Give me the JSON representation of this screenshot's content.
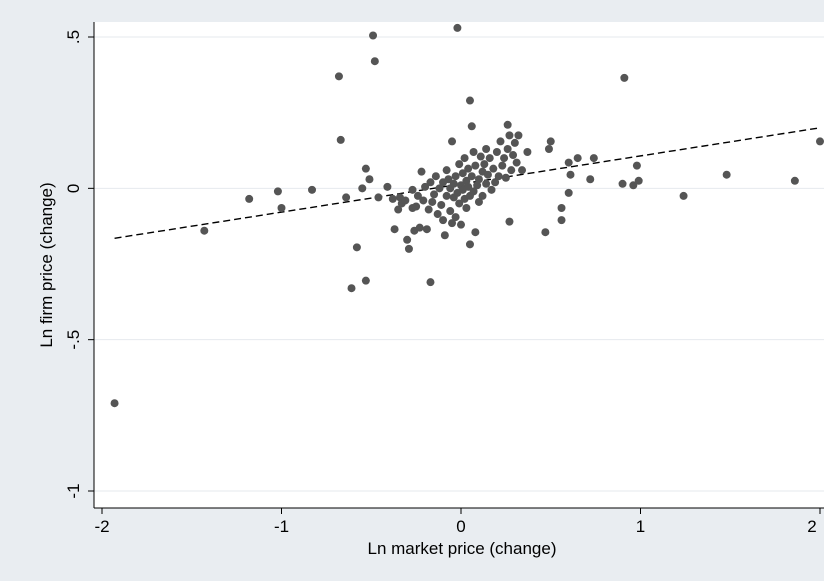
{
  "chart_data": {
    "type": "scatter",
    "title": "",
    "xlabel": "Ln market price (change)",
    "ylabel": "Ln firm price (change)",
    "xlim": [
      -2,
      2
    ],
    "ylim": [
      -1,
      0.5
    ],
    "x_ticks": [
      {
        "value": -2,
        "label": "-2"
      },
      {
        "value": -1,
        "label": "-1"
      },
      {
        "value": 0,
        "label": "0"
      },
      {
        "value": 1,
        "label": "1"
      },
      {
        "value": 2,
        "label": "2"
      }
    ],
    "y_ticks": [
      {
        "value": 0.5,
        "label": ".5"
      },
      {
        "value": 0,
        "label": "0"
      },
      {
        "value": -0.5,
        "label": "-.5"
      },
      {
        "value": -1,
        "label": "-1"
      }
    ],
    "grid": "horizontal",
    "legend": "none",
    "colors": {
      "background": "#e9edf1",
      "plot_area": "#ffffff",
      "grid": "#e6eaee",
      "points": "#555555",
      "fit_line": "#000000"
    },
    "fit_line": {
      "style": "dashed",
      "x": [
        -1.93,
        2.0
      ],
      "y": [
        -0.165,
        0.2
      ]
    },
    "points": [
      {
        "x": -1.93,
        "y": -0.71
      },
      {
        "x": -1.43,
        "y": -0.14
      },
      {
        "x": -1.18,
        "y": -0.035
      },
      {
        "x": -1.02,
        "y": -0.01
      },
      {
        "x": -1.0,
        "y": -0.065
      },
      {
        "x": -0.83,
        "y": -0.005
      },
      {
        "x": -0.68,
        "y": 0.37
      },
      {
        "x": -0.67,
        "y": 0.16
      },
      {
        "x": -0.64,
        "y": -0.03
      },
      {
        "x": -0.61,
        "y": -0.33
      },
      {
        "x": -0.58,
        "y": -0.195
      },
      {
        "x": -0.55,
        "y": 0.0
      },
      {
        "x": -0.53,
        "y": -0.305
      },
      {
        "x": -0.53,
        "y": 0.065
      },
      {
        "x": -0.51,
        "y": 0.03
      },
      {
        "x": -0.49,
        "y": 0.505
      },
      {
        "x": -0.48,
        "y": 0.42
      },
      {
        "x": -0.46,
        "y": -0.03
      },
      {
        "x": -0.41,
        "y": 0.005
      },
      {
        "x": -0.38,
        "y": -0.035
      },
      {
        "x": -0.37,
        "y": -0.135
      },
      {
        "x": -0.35,
        "y": -0.07
      },
      {
        "x": -0.34,
        "y": -0.03
      },
      {
        "x": -0.33,
        "y": -0.05
      },
      {
        "x": -0.31,
        "y": -0.04
      },
      {
        "x": -0.3,
        "y": -0.17
      },
      {
        "x": -0.29,
        "y": -0.2
      },
      {
        "x": -0.27,
        "y": -0.065
      },
      {
        "x": -0.27,
        "y": -0.005
      },
      {
        "x": -0.26,
        "y": -0.14
      },
      {
        "x": -0.25,
        "y": -0.06
      },
      {
        "x": -0.24,
        "y": -0.025
      },
      {
        "x": -0.23,
        "y": -0.13
      },
      {
        "x": -0.22,
        "y": 0.055
      },
      {
        "x": -0.21,
        "y": -0.04
      },
      {
        "x": -0.2,
        "y": 0.005
      },
      {
        "x": -0.19,
        "y": -0.135
      },
      {
        "x": -0.18,
        "y": -0.07
      },
      {
        "x": -0.17,
        "y": -0.31
      },
      {
        "x": -0.17,
        "y": 0.02
      },
      {
        "x": -0.16,
        "y": -0.045
      },
      {
        "x": -0.15,
        "y": -0.02
      },
      {
        "x": -0.14,
        "y": 0.04
      },
      {
        "x": -0.13,
        "y": -0.085
      },
      {
        "x": -0.12,
        "y": 0.0
      },
      {
        "x": -0.11,
        "y": -0.055
      },
      {
        "x": -0.1,
        "y": 0.02
      },
      {
        "x": -0.1,
        "y": -0.105
      },
      {
        "x": -0.09,
        "y": -0.155
      },
      {
        "x": -0.08,
        "y": 0.06
      },
      {
        "x": -0.08,
        "y": -0.025
      },
      {
        "x": -0.07,
        "y": 0.03
      },
      {
        "x": -0.06,
        "y": -0.075
      },
      {
        "x": -0.06,
        "y": 0.0
      },
      {
        "x": -0.05,
        "y": -0.115
      },
      {
        "x": -0.05,
        "y": 0.155
      },
      {
        "x": -0.04,
        "y": -0.03
      },
      {
        "x": -0.04,
        "y": 0.015
      },
      {
        "x": -0.03,
        "y": -0.095
      },
      {
        "x": -0.03,
        "y": 0.04
      },
      {
        "x": -0.02,
        "y": 0.53
      },
      {
        "x": -0.02,
        "y": -0.015
      },
      {
        "x": -0.01,
        "y": 0.08
      },
      {
        "x": -0.01,
        "y": -0.05
      },
      {
        "x": 0.0,
        "y": 0.01
      },
      {
        "x": 0.0,
        "y": -0.12
      },
      {
        "x": 0.01,
        "y": 0.05
      },
      {
        "x": 0.01,
        "y": -0.005
      },
      {
        "x": 0.02,
        "y": 0.1
      },
      {
        "x": 0.02,
        "y": -0.035
      },
      {
        "x": 0.03,
        "y": 0.025
      },
      {
        "x": 0.03,
        "y": -0.065
      },
      {
        "x": 0.04,
        "y": 0.065
      },
      {
        "x": 0.04,
        "y": 0.005
      },
      {
        "x": 0.05,
        "y": 0.29
      },
      {
        "x": 0.05,
        "y": -0.025
      },
      {
        "x": 0.05,
        "y": -0.185
      },
      {
        "x": 0.06,
        "y": 0.205
      },
      {
        "x": 0.06,
        "y": 0.04
      },
      {
        "x": 0.07,
        "y": -0.01
      },
      {
        "x": 0.07,
        "y": 0.12
      },
      {
        "x": 0.08,
        "y": -0.145
      },
      {
        "x": 0.08,
        "y": 0.075
      },
      {
        "x": 0.09,
        "y": 0.01
      },
      {
        "x": 0.1,
        "y": -0.045
      },
      {
        "x": 0.1,
        "y": 0.03
      },
      {
        "x": 0.11,
        "y": 0.105
      },
      {
        "x": 0.12,
        "y": 0.055
      },
      {
        "x": 0.12,
        "y": -0.025
      },
      {
        "x": 0.13,
        "y": 0.08
      },
      {
        "x": 0.14,
        "y": 0.015
      },
      {
        "x": 0.14,
        "y": 0.13
      },
      {
        "x": 0.15,
        "y": 0.045
      },
      {
        "x": 0.16,
        "y": 0.1
      },
      {
        "x": 0.17,
        "y": -0.005
      },
      {
        "x": 0.18,
        "y": 0.065
      },
      {
        "x": 0.19,
        "y": 0.02
      },
      {
        "x": 0.2,
        "y": 0.12
      },
      {
        "x": 0.21,
        "y": 0.04
      },
      {
        "x": 0.22,
        "y": 0.155
      },
      {
        "x": 0.23,
        "y": 0.075
      },
      {
        "x": 0.24,
        "y": 0.1
      },
      {
        "x": 0.25,
        "y": 0.035
      },
      {
        "x": 0.26,
        "y": 0.21
      },
      {
        "x": 0.26,
        "y": 0.13
      },
      {
        "x": 0.27,
        "y": -0.11
      },
      {
        "x": 0.27,
        "y": 0.175
      },
      {
        "x": 0.28,
        "y": 0.06
      },
      {
        "x": 0.29,
        "y": 0.11
      },
      {
        "x": 0.3,
        "y": 0.15
      },
      {
        "x": 0.31,
        "y": 0.085
      },
      {
        "x": 0.32,
        "y": 0.175
      },
      {
        "x": 0.34,
        "y": 0.06
      },
      {
        "x": 0.37,
        "y": 0.12
      },
      {
        "x": 0.47,
        "y": -0.145
      },
      {
        "x": 0.49,
        "y": 0.13
      },
      {
        "x": 0.5,
        "y": 0.155
      },
      {
        "x": 0.56,
        "y": -0.065
      },
      {
        "x": 0.56,
        "y": -0.105
      },
      {
        "x": 0.6,
        "y": 0.085
      },
      {
        "x": 0.6,
        "y": -0.015
      },
      {
        "x": 0.61,
        "y": 0.045
      },
      {
        "x": 0.65,
        "y": 0.1
      },
      {
        "x": 0.72,
        "y": 0.03
      },
      {
        "x": 0.74,
        "y": 0.1
      },
      {
        "x": 0.9,
        "y": 0.015
      },
      {
        "x": 0.91,
        "y": 0.365
      },
      {
        "x": 0.96,
        "y": 0.01
      },
      {
        "x": 0.98,
        "y": 0.075
      },
      {
        "x": 0.99,
        "y": 0.025
      },
      {
        "x": 1.24,
        "y": -0.025
      },
      {
        "x": 1.48,
        "y": 0.045
      },
      {
        "x": 1.86,
        "y": 0.025
      },
      {
        "x": 2.0,
        "y": 0.155
      }
    ]
  }
}
